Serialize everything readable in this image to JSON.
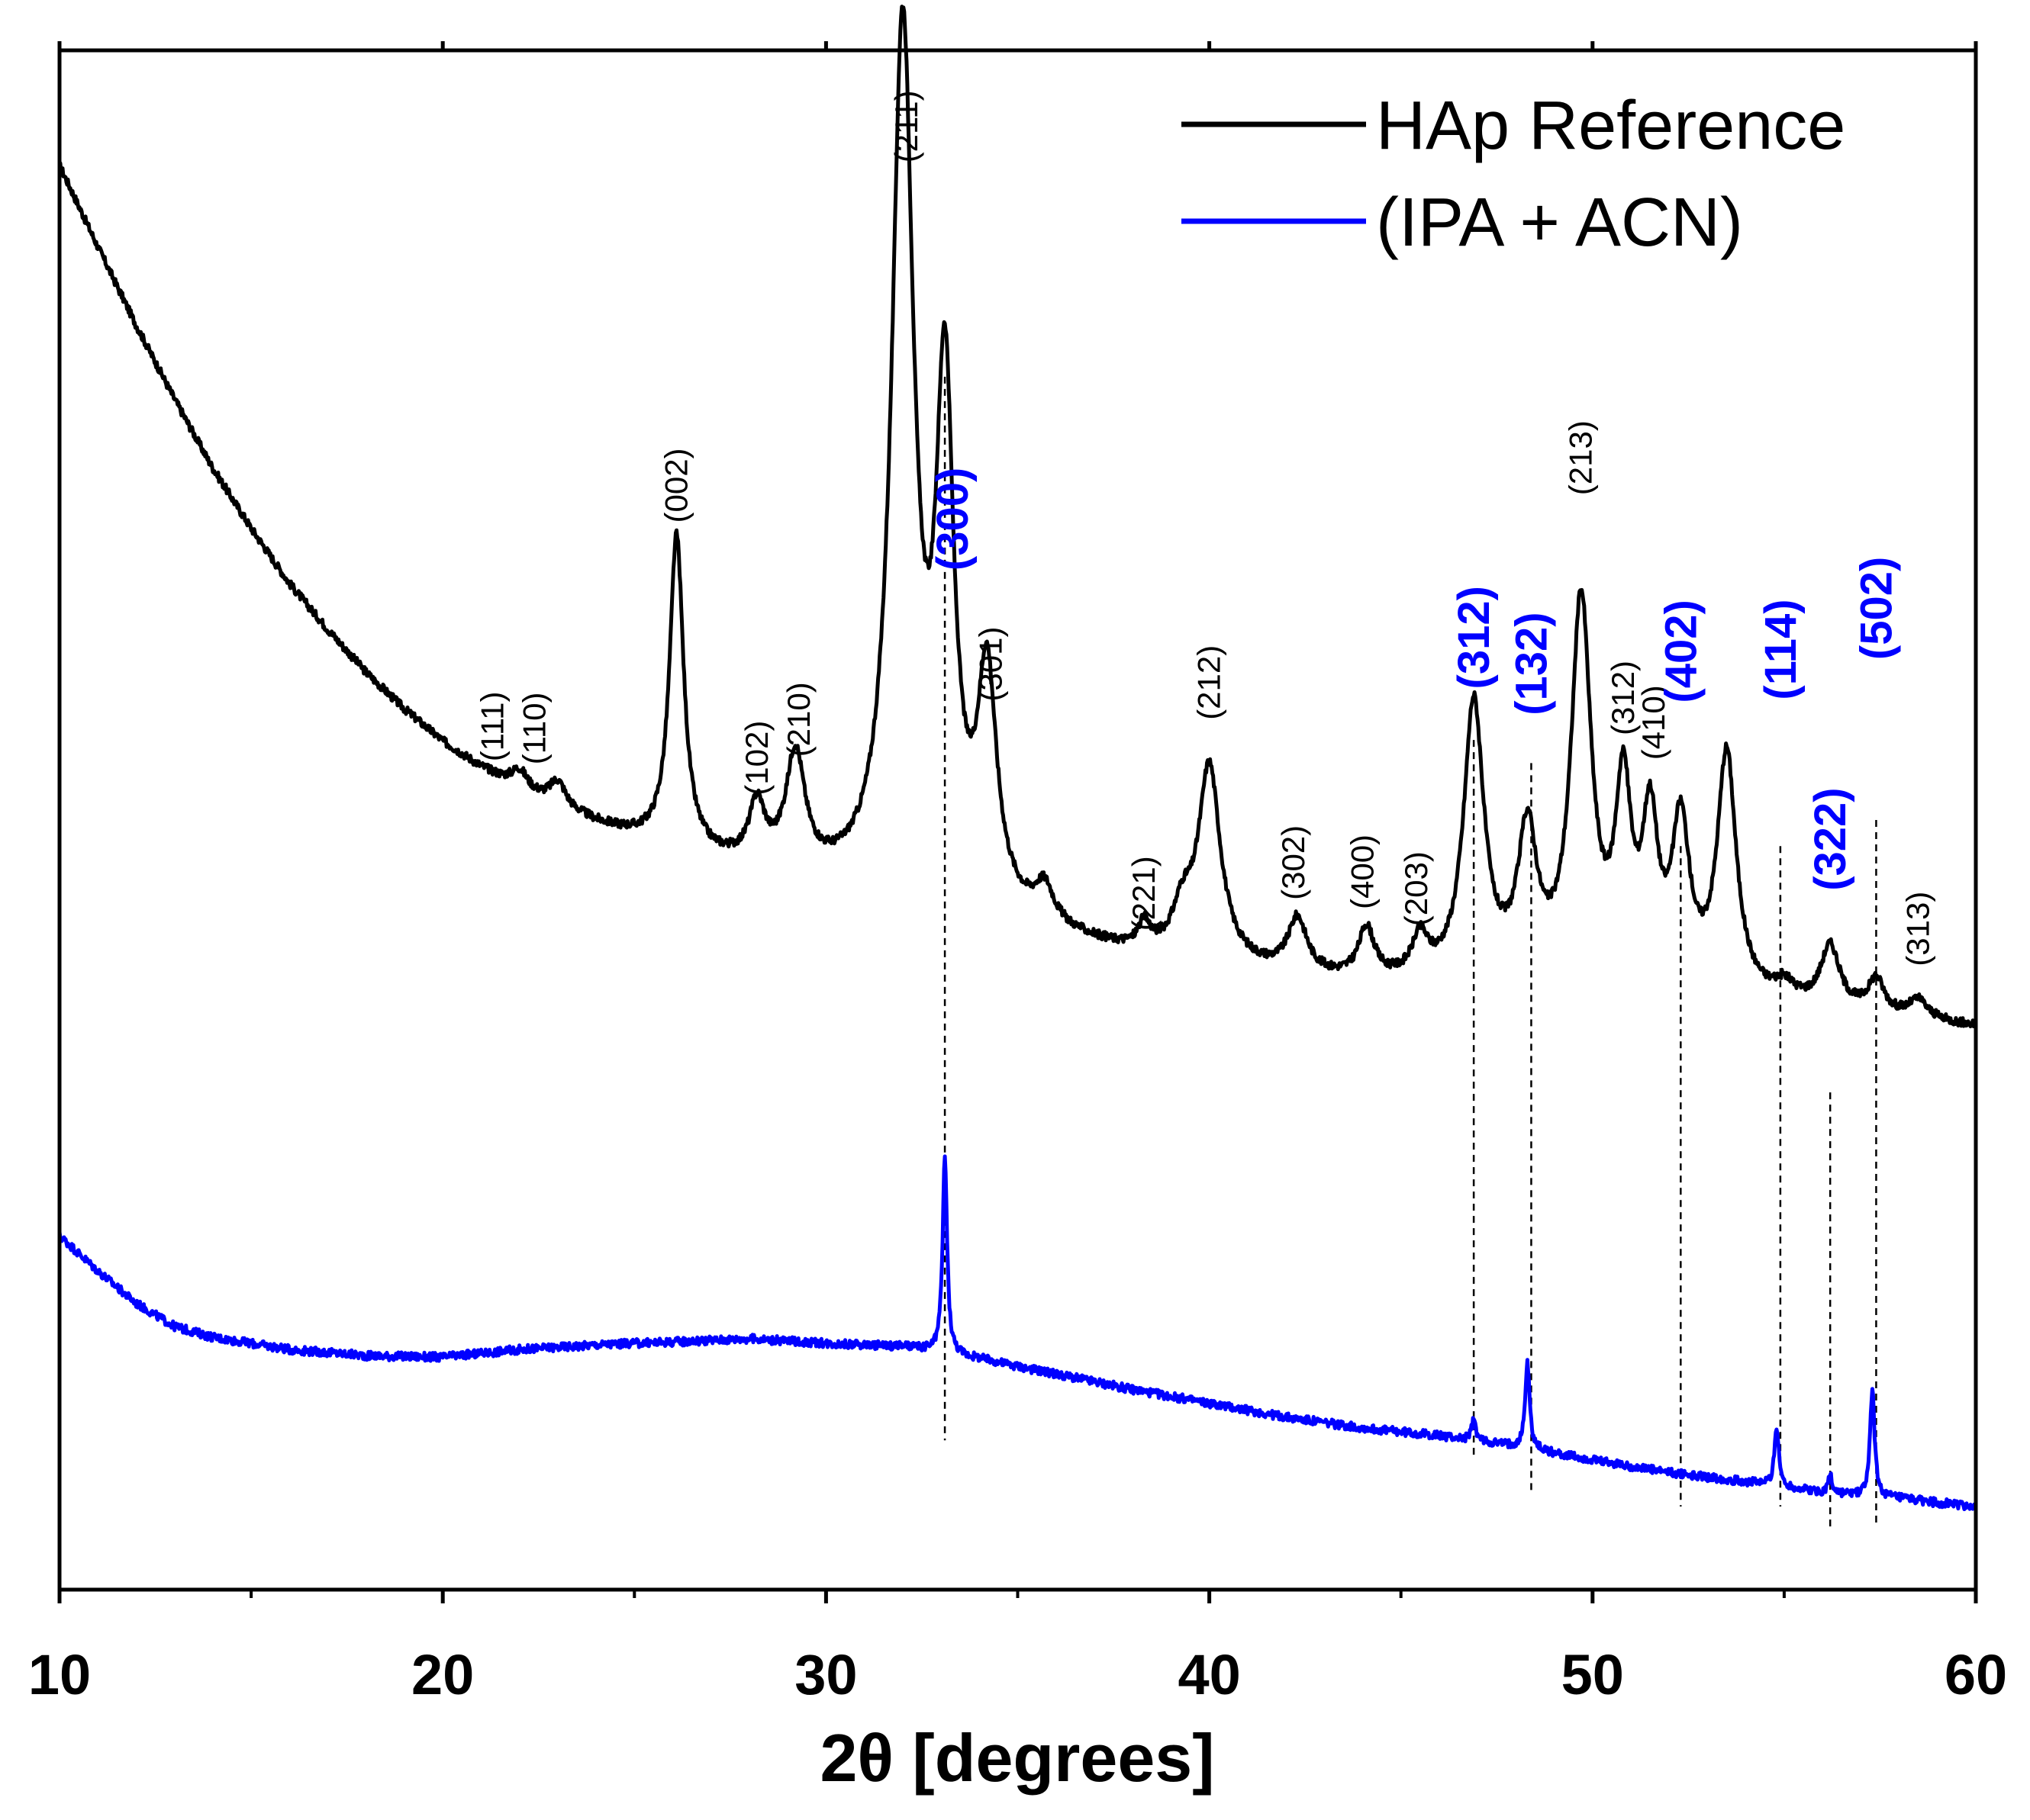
{
  "chart_data": {
    "type": "line",
    "xlabel": "2θ [degrees]",
    "ylabel": "",
    "xlim": [
      10,
      60
    ],
    "ylim": [
      0,
      100
    ],
    "x_major_ticks": [
      10,
      20,
      30,
      40,
      50,
      60
    ],
    "x_tick_labels": [
      "10",
      "20",
      "30",
      "40",
      "50",
      "60"
    ],
    "x_minor_ticks": [
      15,
      25,
      35,
      45,
      55
    ],
    "y_ticks_shown": false,
    "grid": false,
    "legend_position": "top-right",
    "colors": {
      "ref": "#000000",
      "sample": "#0000ff",
      "reference_line": "#000000"
    },
    "series": [
      {
        "name": "HAp Reference",
        "color": "#000000",
        "baseline": [
          [
            10,
            92.5
          ],
          [
            11,
            87.2
          ],
          [
            12,
            82.1
          ],
          [
            13,
            77.3
          ],
          [
            14,
            72.8
          ],
          [
            15,
            68.9
          ],
          [
            16,
            65.3
          ],
          [
            17,
            62.3
          ],
          [
            18,
            59.5
          ],
          [
            19,
            57.1
          ],
          [
            20,
            55.0
          ],
          [
            21,
            53.3
          ],
          [
            22,
            51.9
          ],
          [
            23,
            50.7
          ],
          [
            24,
            49.6
          ],
          [
            25,
            48.7
          ],
          [
            26,
            47.9
          ],
          [
            27,
            47.2
          ],
          [
            28,
            46.6
          ],
          [
            30,
            45.6
          ],
          [
            32,
            44.6
          ],
          [
            34,
            43.6
          ],
          [
            36,
            42.2
          ],
          [
            38,
            41.0
          ],
          [
            40,
            40.4
          ],
          [
            42,
            39.7
          ],
          [
            44,
            39.2
          ],
          [
            46,
            39.1
          ],
          [
            48,
            39.0
          ],
          [
            50,
            38.8
          ],
          [
            52,
            38.5
          ],
          [
            54,
            38.0
          ],
          [
            56,
            37.5
          ],
          [
            58,
            37.0
          ],
          [
            60,
            36.5
          ]
        ],
        "peaks": [
          {
            "center": 22.0,
            "height": 1.2,
            "width": 0.25
          },
          {
            "center": 23.0,
            "height": 1.6,
            "width": 0.25
          },
          {
            "center": 26.1,
            "height": 20.3,
            "width": 0.22
          },
          {
            "center": 28.2,
            "height": 3.8,
            "width": 0.25
          },
          {
            "center": 29.2,
            "height": 7.5,
            "width": 0.3
          },
          {
            "center": 32.0,
            "height": 56.0,
            "width": 0.35
          },
          {
            "center": 33.1,
            "height": 32.0,
            "width": 0.28
          },
          {
            "center": 34.2,
            "height": 14.5,
            "width": 0.3
          },
          {
            "center": 35.7,
            "height": 2.3,
            "width": 0.3
          },
          {
            "center": 38.3,
            "height": 1.6,
            "width": 0.2
          },
          {
            "center": 39.3,
            "height": 2.6,
            "width": 0.3
          },
          {
            "center": 40.0,
            "height": 12.6,
            "width": 0.35
          },
          {
            "center": 42.3,
            "height": 3.5,
            "width": 0.3
          },
          {
            "center": 44.1,
            "height": 3.3,
            "width": 0.25
          },
          {
            "center": 45.5,
            "height": 2.5,
            "width": 0.25
          },
          {
            "center": 46.9,
            "height": 18.0,
            "width": 0.32
          },
          {
            "center": 48.3,
            "height": 9.3,
            "width": 0.3
          },
          {
            "center": 49.7,
            "height": 24.5,
            "width": 0.32
          },
          {
            "center": 50.8,
            "height": 12.0,
            "width": 0.25
          },
          {
            "center": 51.5,
            "height": 10.0,
            "width": 0.25
          },
          {
            "center": 52.3,
            "height": 10.2,
            "width": 0.28
          },
          {
            "center": 53.5,
            "height": 15.5,
            "width": 0.3
          },
          {
            "center": 55.0,
            "height": 1.0,
            "width": 0.3
          },
          {
            "center": 56.2,
            "height": 4.0,
            "width": 0.3
          },
          {
            "center": 57.4,
            "height": 2.2,
            "width": 0.25
          },
          {
            "center": 58.5,
            "height": 1.2,
            "width": 0.3
          }
        ]
      },
      {
        "name": "(IPA + ACN)",
        "color": "#0000ff",
        "baseline": [
          [
            10,
            23.0
          ],
          [
            11,
            20.7
          ],
          [
            12,
            18.6
          ],
          [
            13,
            17.1
          ],
          [
            14,
            16.4
          ],
          [
            16,
            15.6
          ],
          [
            18,
            15.2
          ],
          [
            20,
            15.1
          ],
          [
            22,
            15.6
          ],
          [
            24,
            15.9
          ],
          [
            26,
            16.1
          ],
          [
            28,
            16.3
          ],
          [
            30,
            16.0
          ],
          [
            32,
            15.8
          ],
          [
            33,
            15.4
          ],
          [
            34,
            15.0
          ],
          [
            36,
            14.0
          ],
          [
            38,
            13.0
          ],
          [
            40,
            12.1
          ],
          [
            42,
            11.2
          ],
          [
            44,
            10.5
          ],
          [
            46,
            10.0
          ],
          [
            48,
            9.3
          ],
          [
            50,
            8.4
          ],
          [
            52,
            7.6
          ],
          [
            54,
            7.0
          ],
          [
            56,
            6.3
          ],
          [
            58,
            5.9
          ],
          [
            60,
            5.4
          ]
        ],
        "peaks": [
          {
            "center": 33.1,
            "height": 12.8,
            "width": 0.07
          },
          {
            "center": 46.9,
            "height": 1.3,
            "width": 0.07
          },
          {
            "center": 48.3,
            "height": 5.6,
            "width": 0.07
          },
          {
            "center": 54.8,
            "height": 3.8,
            "width": 0.07
          },
          {
            "center": 56.2,
            "height": 1.2,
            "width": 0.06
          },
          {
            "center": 57.3,
            "height": 7.0,
            "width": 0.07
          }
        ]
      }
    ],
    "reference_lines": [
      {
        "x": 33.1,
        "y_top": 78.8,
        "y_bottom": 9.7
      },
      {
        "x": 46.9,
        "y_top": 55.2,
        "y_bottom": 8.6
      },
      {
        "x": 48.4,
        "y_top": 53.7,
        "y_bottom": 6.4
      },
      {
        "x": 52.3,
        "y_top": 48.3,
        "y_bottom": 5.4
      },
      {
        "x": 54.9,
        "y_top": 48.3,
        "y_bottom": 5.4
      },
      {
        "x": 56.2,
        "y_top": 32.3,
        "y_bottom": 4.0
      },
      {
        "x": 57.4,
        "y_top": 50.0,
        "y_bottom": 4.3
      }
    ],
    "annotations": [
      {
        "text": "(111)",
        "x": 21.3,
        "y": 53.8,
        "color": "#000000"
      },
      {
        "text": "(110)",
        "x": 22.4,
        "y": 53.6,
        "color": "#000000"
      },
      {
        "text": "(002)",
        "x": 26.1,
        "y": 69.3,
        "color": "#000000"
      },
      {
        "text": "(102)",
        "x": 28.2,
        "y": 51.6,
        "color": "#000000"
      },
      {
        "text": "(210)",
        "x": 29.3,
        "y": 54.1,
        "color": "#000000"
      },
      {
        "text": "(211)",
        "x": 32.1,
        "y": 92.7,
        "color": "#000000"
      },
      {
        "text": "(300)",
        "x": 33.3,
        "y": 66.2,
        "color": "#0000ff"
      },
      {
        "text": "(301)",
        "x": 34.3,
        "y": 57.7,
        "color": "#000000"
      },
      {
        "text": "(221)",
        "x": 38.3,
        "y": 42.8,
        "color": "#000000"
      },
      {
        "text": "(212)",
        "x": 40.0,
        "y": 56.5,
        "color": "#000000"
      },
      {
        "text": "(302)",
        "x": 42.2,
        "y": 44.8,
        "color": "#000000"
      },
      {
        "text": "(400)",
        "x": 44.0,
        "y": 44.2,
        "color": "#000000"
      },
      {
        "text": "(203)",
        "x": 45.4,
        "y": 43.1,
        "color": "#000000"
      },
      {
        "text": "(312)",
        "x": 46.9,
        "y": 58.5,
        "color": "#0000ff"
      },
      {
        "text": "(132)",
        "x": 48.4,
        "y": 56.8,
        "color": "#0000ff"
      },
      {
        "text": "(213)",
        "x": 49.7,
        "y": 71.1,
        "color": "#000000"
      },
      {
        "text": "(312)",
        "x": 50.8,
        "y": 55.5,
        "color": "#000000"
      },
      {
        "text": "(410)",
        "x": 51.6,
        "y": 53.9,
        "color": "#000000"
      },
      {
        "text": "(402)",
        "x": 52.3,
        "y": 57.6,
        "color": "#0000ff"
      },
      {
        "text": "(114)",
        "x": 54.9,
        "y": 57.8,
        "color": "#0000ff"
      },
      {
        "text": "(322)",
        "x": 56.2,
        "y": 45.4,
        "color": "#0000ff"
      },
      {
        "text": "(502)",
        "x": 57.4,
        "y": 60.4,
        "color": "#0000ff"
      },
      {
        "text": "(313)",
        "x": 58.5,
        "y": 40.5,
        "color": "#000000"
      }
    ]
  }
}
